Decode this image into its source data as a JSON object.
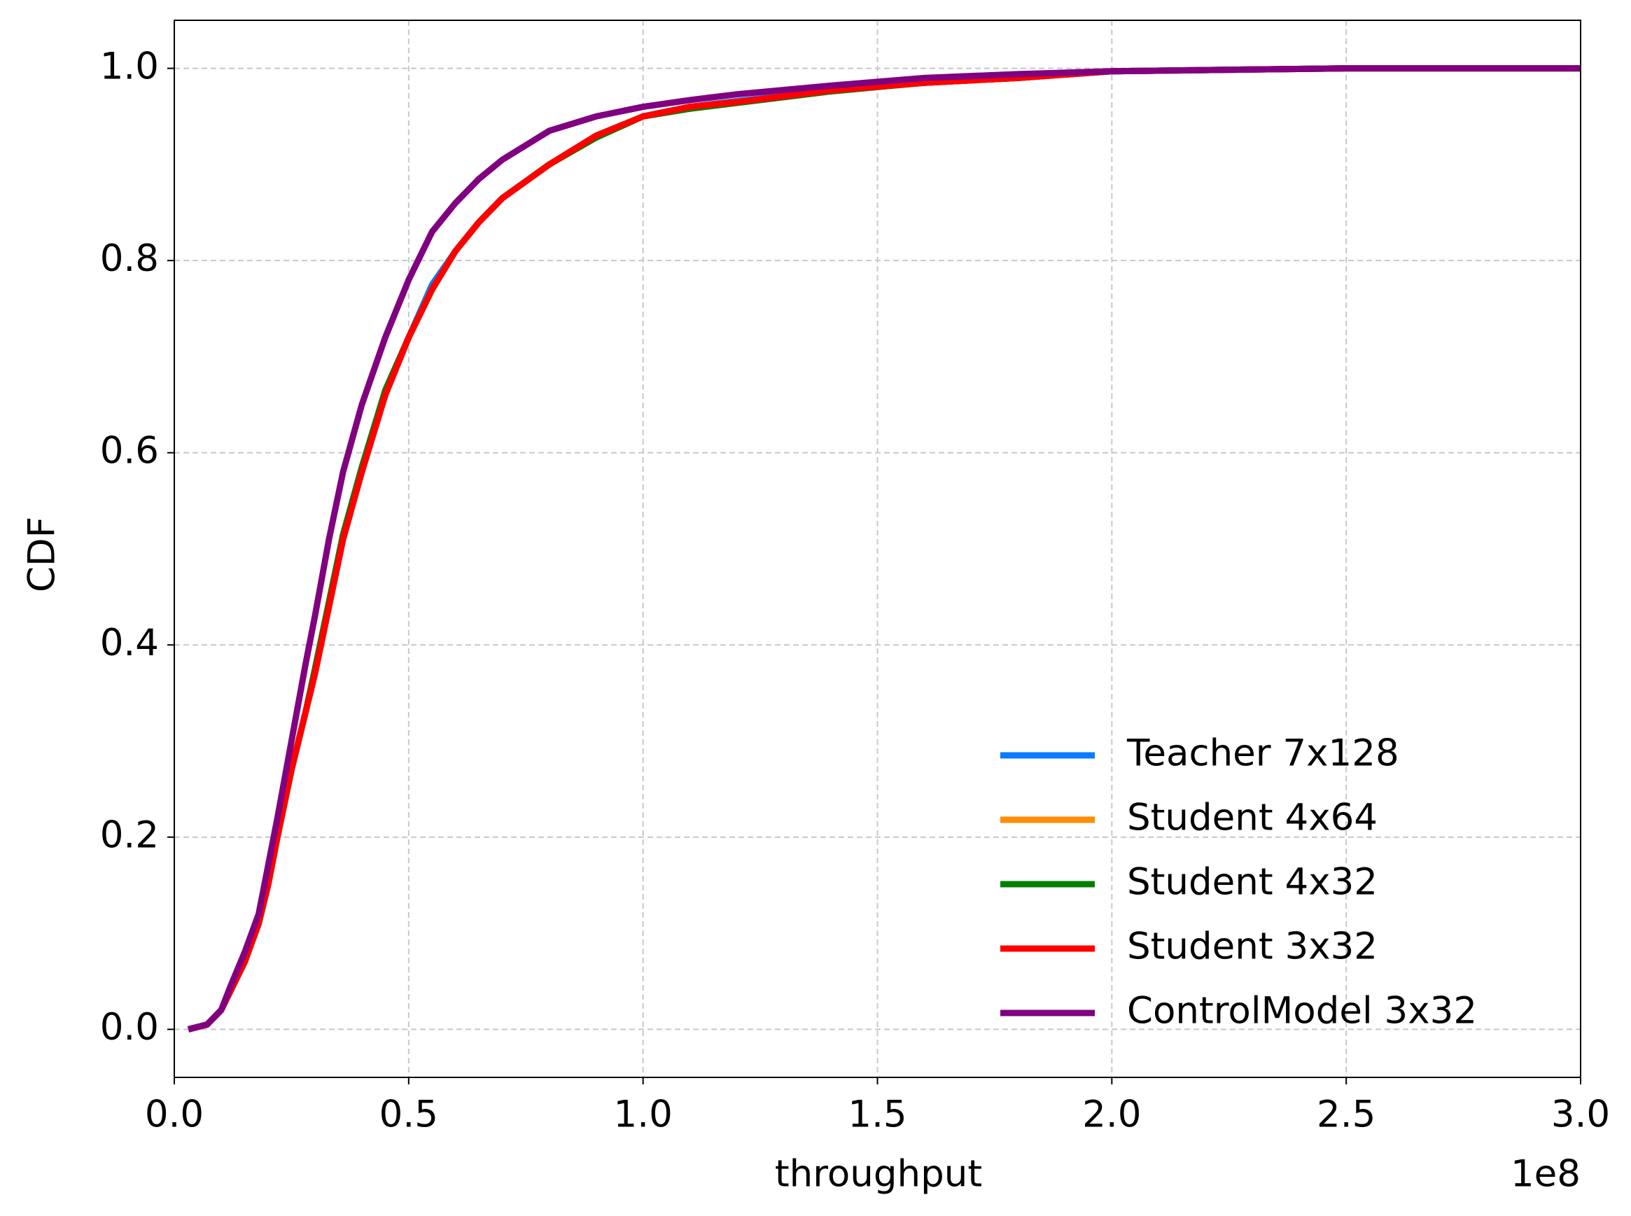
{
  "chart_data": {
    "type": "line",
    "x_label": "throughput",
    "y_label": "CDF",
    "x_offset_label": "1e8",
    "x": [
      0.03,
      0.07,
      0.1,
      0.12,
      0.15,
      0.18,
      0.2,
      0.22,
      0.25,
      0.28,
      0.3,
      0.33,
      0.36,
      0.4,
      0.45,
      0.5,
      0.55,
      0.6,
      0.65,
      0.7,
      0.8,
      0.9,
      1.0,
      1.1,
      1.2,
      1.4,
      1.6,
      1.8,
      2.0,
      2.5,
      3.0
    ],
    "series": [
      {
        "name": "Teacher 7x128",
        "color": "#0a7cff",
        "values": [
          0,
          0.005,
          0.02,
          0.04,
          0.07,
          0.11,
          0.15,
          0.2,
          0.27,
          0.33,
          0.37,
          0.44,
          0.51,
          0.58,
          0.66,
          0.72,
          0.775,
          0.81,
          0.84,
          0.865,
          0.9,
          0.93,
          0.95,
          0.96,
          0.966,
          0.977,
          0.985,
          0.99,
          0.997,
          1.0,
          1.0
        ]
      },
      {
        "name": "Student 4x64",
        "color": "#ff8c00",
        "values": [
          0,
          0.005,
          0.02,
          0.04,
          0.07,
          0.11,
          0.15,
          0.2,
          0.27,
          0.33,
          0.37,
          0.44,
          0.51,
          0.58,
          0.66,
          0.72,
          0.77,
          0.81,
          0.84,
          0.865,
          0.9,
          0.93,
          0.95,
          0.96,
          0.965,
          0.977,
          0.985,
          0.99,
          0.997,
          1.0,
          1.0
        ]
      },
      {
        "name": "Student 4x32",
        "color": "#008000",
        "values": [
          0,
          0.005,
          0.02,
          0.04,
          0.07,
          0.11,
          0.15,
          0.2,
          0.27,
          0.33,
          0.375,
          0.445,
          0.515,
          0.585,
          0.665,
          0.72,
          0.77,
          0.81,
          0.84,
          0.865,
          0.9,
          0.928,
          0.95,
          0.958,
          0.964,
          0.976,
          0.985,
          0.99,
          0.997,
          1.0,
          1.0
        ]
      },
      {
        "name": "Student 3x32",
        "color": "#ff0000",
        "values": [
          0,
          0.005,
          0.02,
          0.04,
          0.07,
          0.11,
          0.15,
          0.2,
          0.27,
          0.33,
          0.37,
          0.44,
          0.51,
          0.58,
          0.66,
          0.72,
          0.77,
          0.81,
          0.84,
          0.865,
          0.9,
          0.93,
          0.95,
          0.96,
          0.965,
          0.977,
          0.985,
          0.99,
          0.997,
          1.0,
          1.0
        ]
      },
      {
        "name": "ControlModel 3x32",
        "color": "#800080",
        "values": [
          0,
          0.005,
          0.02,
          0.045,
          0.08,
          0.12,
          0.17,
          0.22,
          0.3,
          0.38,
          0.43,
          0.51,
          0.58,
          0.65,
          0.72,
          0.78,
          0.83,
          0.86,
          0.885,
          0.905,
          0.935,
          0.95,
          0.96,
          0.967,
          0.973,
          0.982,
          0.99,
          0.994,
          0.997,
          1.0,
          1.0
        ]
      }
    ],
    "xlim": [
      0,
      3
    ],
    "ylim": [
      -0.05,
      1.05
    ],
    "xticks": [
      {
        "value": 0,
        "label": "0.0"
      },
      0.5,
      {
        "value": 1,
        "label": "1.0"
      },
      1.5,
      {
        "value": 2,
        "label": "2.0"
      },
      2.5,
      {
        "value": 3,
        "label": "3.0"
      }
    ],
    "yticks": [
      {
        "value": 0,
        "label": "0.0"
      },
      0.2,
      0.4,
      0.6,
      0.8,
      {
        "value": 1,
        "label": "1.0"
      }
    ],
    "grid": true,
    "legend": "lower right"
  }
}
